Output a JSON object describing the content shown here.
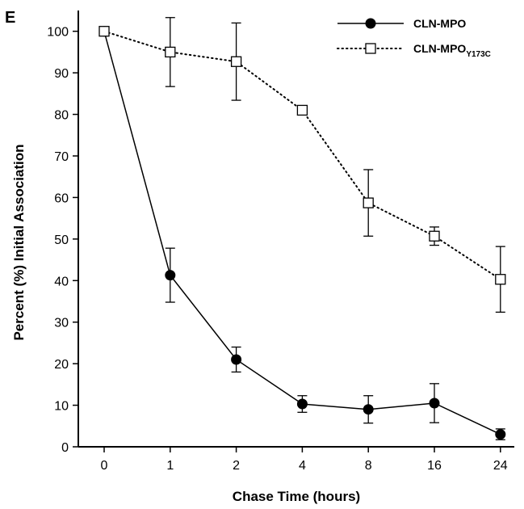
{
  "panel_label": "E",
  "chart_data": {
    "type": "line",
    "title": "",
    "xlabel": "Chase Time (hours)",
    "ylabel": "Percent (%) Initial Association",
    "categories": [
      "0",
      "1",
      "2",
      "4",
      "8",
      "16",
      "24"
    ],
    "ylim": [
      0,
      105
    ],
    "yticks": [
      0,
      10,
      20,
      30,
      40,
      50,
      60,
      70,
      80,
      90,
      100
    ],
    "grid": false,
    "legend_position": "top-right",
    "series": [
      {
        "name": "CLN-MPO",
        "name_main": "CLN-MPO",
        "name_sub": "",
        "marker": "filled-circle",
        "line_style": "solid",
        "color": "#000000",
        "values": [
          100,
          41.3,
          21,
          10.3,
          9,
          10.5,
          3
        ],
        "errors": [
          0.5,
          6.5,
          3,
          2,
          3.3,
          4.7,
          1.3
        ]
      },
      {
        "name": "CLN-MPOY173C",
        "name_main": "CLN-MPO",
        "name_sub": "Y173C",
        "marker": "open-square",
        "line_style": "dotted",
        "color": "#000000",
        "values": [
          100,
          95,
          92.7,
          81,
          58.7,
          50.7,
          40.3
        ],
        "errors": [
          0.5,
          8.3,
          9.3,
          0.5,
          8,
          2.2,
          7.9
        ]
      }
    ]
  }
}
